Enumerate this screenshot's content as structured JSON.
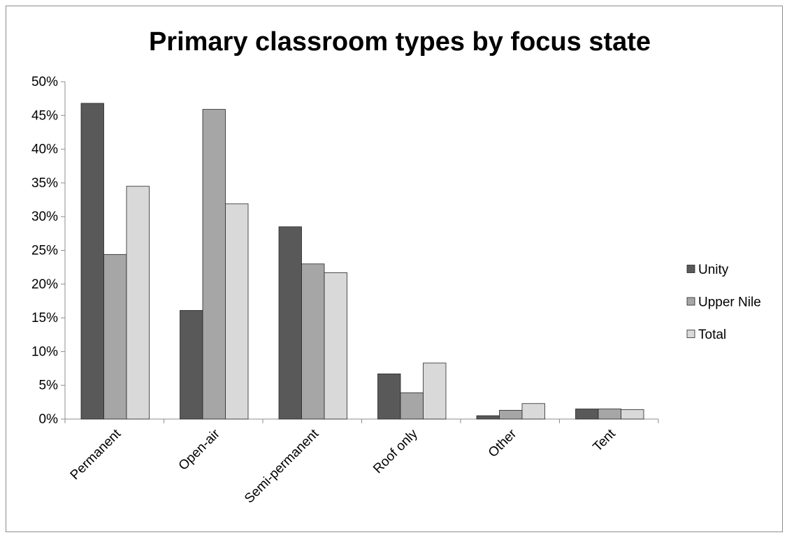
{
  "chart_data": {
    "type": "bar",
    "title": "Primary classroom types by focus state",
    "xlabel": "",
    "ylabel": "",
    "categories": [
      "Permanent",
      "Open-air",
      "Semi-permanent",
      "Roof only",
      "Other",
      "Tent"
    ],
    "series": [
      {
        "name": "Unity",
        "values": [
          46.8,
          16.1,
          28.5,
          6.7,
          0.5,
          1.5
        ],
        "color": "#595959"
      },
      {
        "name": "Upper Nile",
        "values": [
          24.4,
          45.9,
          23.0,
          3.9,
          1.3,
          1.5
        ],
        "color": "#a6a6a6"
      },
      {
        "name": "Total",
        "values": [
          34.5,
          31.9,
          21.7,
          8.3,
          2.3,
          1.4
        ],
        "color": "#d9d9d9"
      }
    ],
    "ylim": [
      0,
      50
    ],
    "yticks": [
      "0%",
      "5%",
      "10%",
      "15%",
      "20%",
      "25%",
      "30%",
      "35%",
      "40%",
      "45%",
      "50%"
    ],
    "grid": false,
    "legend_position": "right"
  }
}
